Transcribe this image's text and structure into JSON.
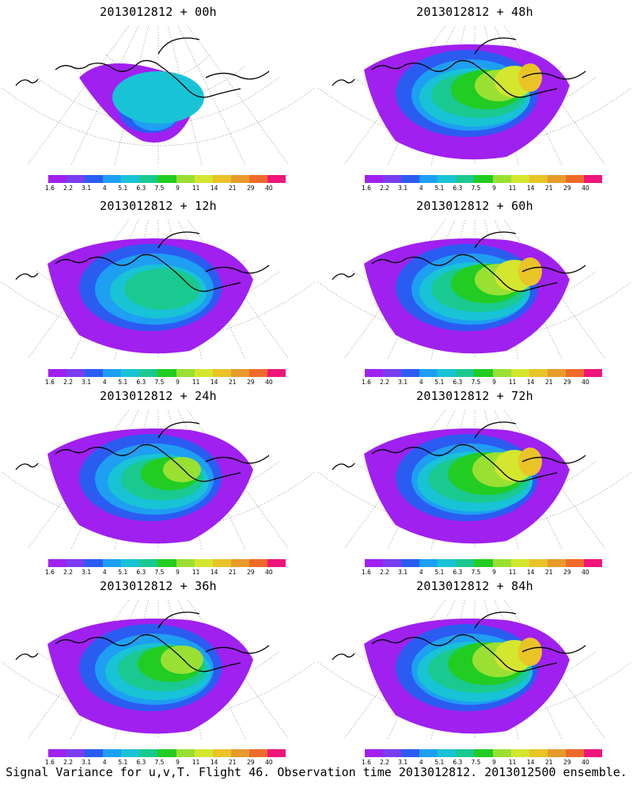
{
  "panels": [
    {
      "title": "2013012812 + 00h",
      "lead": "00h"
    },
    {
      "title": "2013012812 + 48h",
      "lead": "48h"
    },
    {
      "title": "2013012812 + 12h",
      "lead": "12h"
    },
    {
      "title": "2013012812 + 60h",
      "lead": "60h"
    },
    {
      "title": "2013012812 + 24h",
      "lead": "24h"
    },
    {
      "title": "2013012812 + 72h",
      "lead": "72h"
    },
    {
      "title": "2013012812 + 36h",
      "lead": "36h"
    },
    {
      "title": "2013012812 + 84h",
      "lead": "84h"
    }
  ],
  "colorbar": {
    "labels": [
      "1.6",
      "2.2",
      "3.1",
      "4",
      "5.1",
      "6.3",
      "7.5",
      "9",
      "11",
      "14",
      "21",
      "29",
      "40"
    ],
    "colors": [
      "#a020f0",
      "#7a3df0",
      "#2b5cf2",
      "#1e9ff2",
      "#18c3d6",
      "#19c98f",
      "#22cc22",
      "#99e033",
      "#d4e62e",
      "#e8c427",
      "#e89a2b",
      "#ee6a2a",
      "#f0157a"
    ]
  },
  "caption": "Signal Variance for u,v,T. Flight 46. Observation time 2013012812. 2013012500 ensemble."
}
